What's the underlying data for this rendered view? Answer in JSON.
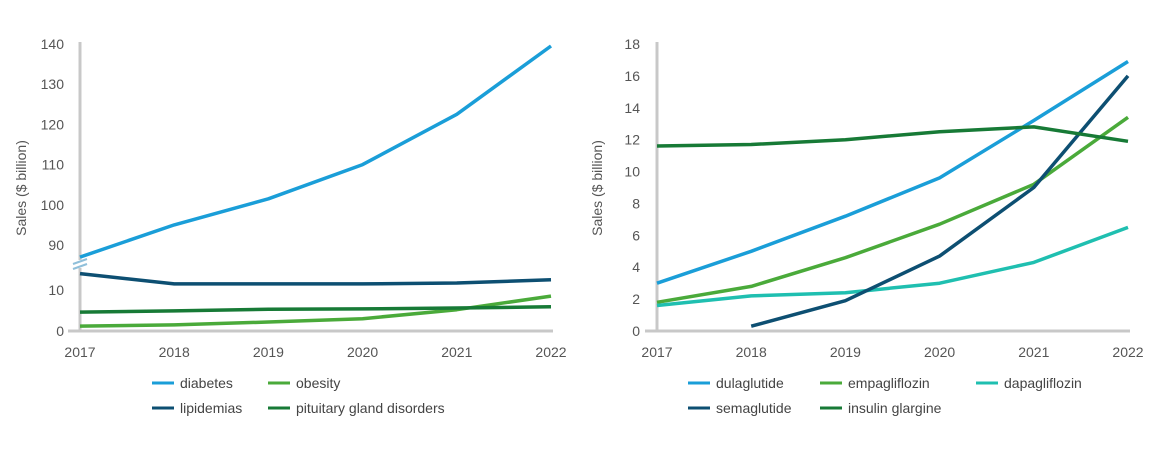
{
  "chart_data": [
    {
      "type": "line",
      "x": [
        "2017",
        "2018",
        "2019",
        "2020",
        "2021",
        "2022"
      ],
      "xlabel": "",
      "ylabel": "Sales ($ billion)",
      "axis_break": true,
      "ylim_lower": [
        0,
        15
      ],
      "ylim_upper": [
        85,
        140
      ],
      "yticks_lower": [
        "0",
        "10"
      ],
      "yticks_upper": [
        "90",
        "100",
        "110",
        "120",
        "130",
        "140"
      ],
      "grid": false,
      "legend_position": "bottom",
      "series": [
        {
          "name": "diabetes",
          "color": "#1a9ed8",
          "values": [
            87,
            95,
            101.5,
            110,
            122.5,
            139.5
          ]
        },
        {
          "name": "obesity",
          "color": "#4aaa3a",
          "values": [
            1.2,
            1.5,
            2.2,
            3,
            5.2,
            8.5
          ]
        },
        {
          "name": "lipidemias",
          "color": "#0d4f72",
          "values": [
            14,
            11.5,
            11.5,
            11.5,
            11.7,
            12.5
          ]
        },
        {
          "name": "pituitary gland disorders",
          "color": "#177a36",
          "values": [
            4.6,
            4.9,
            5.3,
            5.4,
            5.6,
            5.9
          ]
        }
      ]
    },
    {
      "type": "line",
      "x": [
        "2017",
        "2018",
        "2019",
        "2020",
        "2021",
        "2022"
      ],
      "xlabel": "",
      "ylabel": "Sales ($ billion)",
      "ylim": [
        0,
        18
      ],
      "yticks": [
        "0",
        "2",
        "4",
        "6",
        "8",
        "10",
        "12",
        "14",
        "16",
        "18"
      ],
      "grid": false,
      "legend_position": "bottom",
      "series": [
        {
          "name": "dulaglutide",
          "color": "#1a9ed8",
          "values": [
            3.0,
            5.0,
            7.2,
            9.6,
            13.2,
            16.9
          ]
        },
        {
          "name": "empagliflozin",
          "color": "#4aaa3a",
          "values": [
            1.8,
            2.8,
            4.6,
            6.7,
            9.2,
            13.4
          ]
        },
        {
          "name": "dapagliflozin",
          "color": "#1fbfb0",
          "values": [
            1.6,
            2.2,
            2.4,
            3.0,
            4.3,
            6.5
          ]
        },
        {
          "name": "semaglutide",
          "color": "#0d4f72",
          "values": [
            null,
            0.3,
            1.9,
            4.7,
            9.0,
            16.0
          ]
        },
        {
          "name": "insulin glargine",
          "color": "#177a36",
          "values": [
            11.6,
            11.7,
            12.0,
            12.5,
            12.8,
            11.9
          ]
        }
      ]
    }
  ]
}
